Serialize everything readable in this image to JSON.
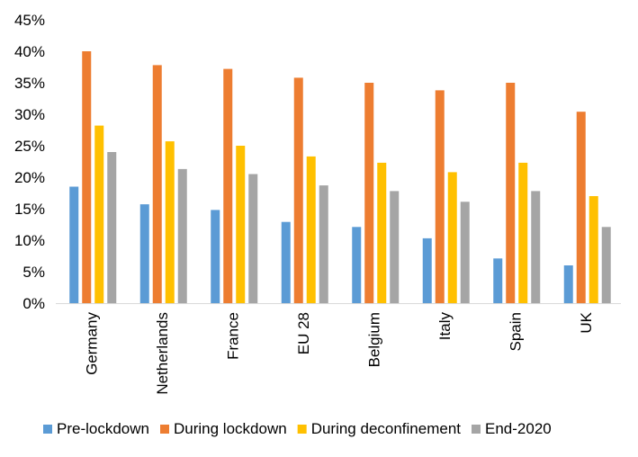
{
  "chart_data": {
    "type": "bar",
    "categories": [
      "Germany",
      "Netherlands",
      "France",
      "EU 28",
      "Belgium",
      "Italy",
      "Spain",
      "UK"
    ],
    "series": [
      {
        "name": "Pre-lockdown",
        "color": "#5B9BD5",
        "values": [
          18.5,
          15.7,
          14.8,
          12.9,
          12.1,
          10.3,
          7.1,
          6.0
        ]
      },
      {
        "name": "During lockdown",
        "color": "#ED7D31",
        "values": [
          40.0,
          37.8,
          37.2,
          35.8,
          35.0,
          33.8,
          35.0,
          30.4
        ]
      },
      {
        "name": "During deconfinement",
        "color": "#FFC000",
        "values": [
          28.2,
          25.7,
          25.0,
          23.3,
          22.3,
          20.8,
          22.3,
          17.0
        ]
      },
      {
        "name": "End-2020",
        "color": "#A5A5A5",
        "values": [
          24.0,
          21.3,
          20.5,
          18.7,
          17.8,
          16.1,
          17.8,
          12.1
        ]
      }
    ],
    "yticks": [
      "0%",
      "5%",
      "10%",
      "15%",
      "20%",
      "25%",
      "30%",
      "35%",
      "40%",
      "45%"
    ],
    "ylim": [
      0,
      45
    ],
    "y_unit": "%",
    "title": "",
    "xlabel": "",
    "ylabel": "",
    "grid": false,
    "legend_position": "bottom"
  }
}
